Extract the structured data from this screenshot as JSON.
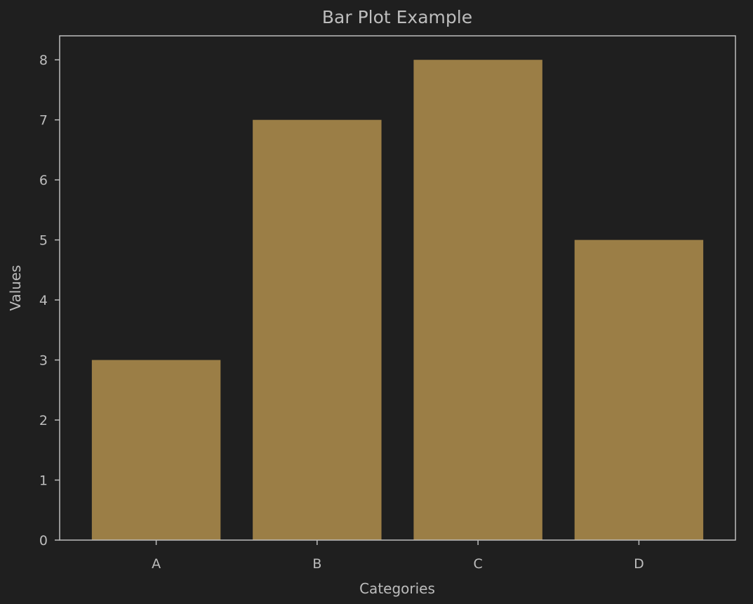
{
  "chart_data": {
    "type": "bar",
    "title": "Bar Plot Example",
    "xlabel": "Categories",
    "ylabel": "Values",
    "categories": [
      "A",
      "B",
      "C",
      "D"
    ],
    "values": [
      3,
      7,
      8,
      5
    ],
    "ylim": [
      0,
      8.4
    ],
    "yticks": [
      0,
      1,
      2,
      3,
      4,
      5,
      6,
      7,
      8
    ],
    "grid": false,
    "legend": "none"
  },
  "colors": {
    "background": "#1f1f1f",
    "bar": "#9b7e46",
    "axes": "#bdbdbd",
    "text": "#bdbdbd"
  }
}
